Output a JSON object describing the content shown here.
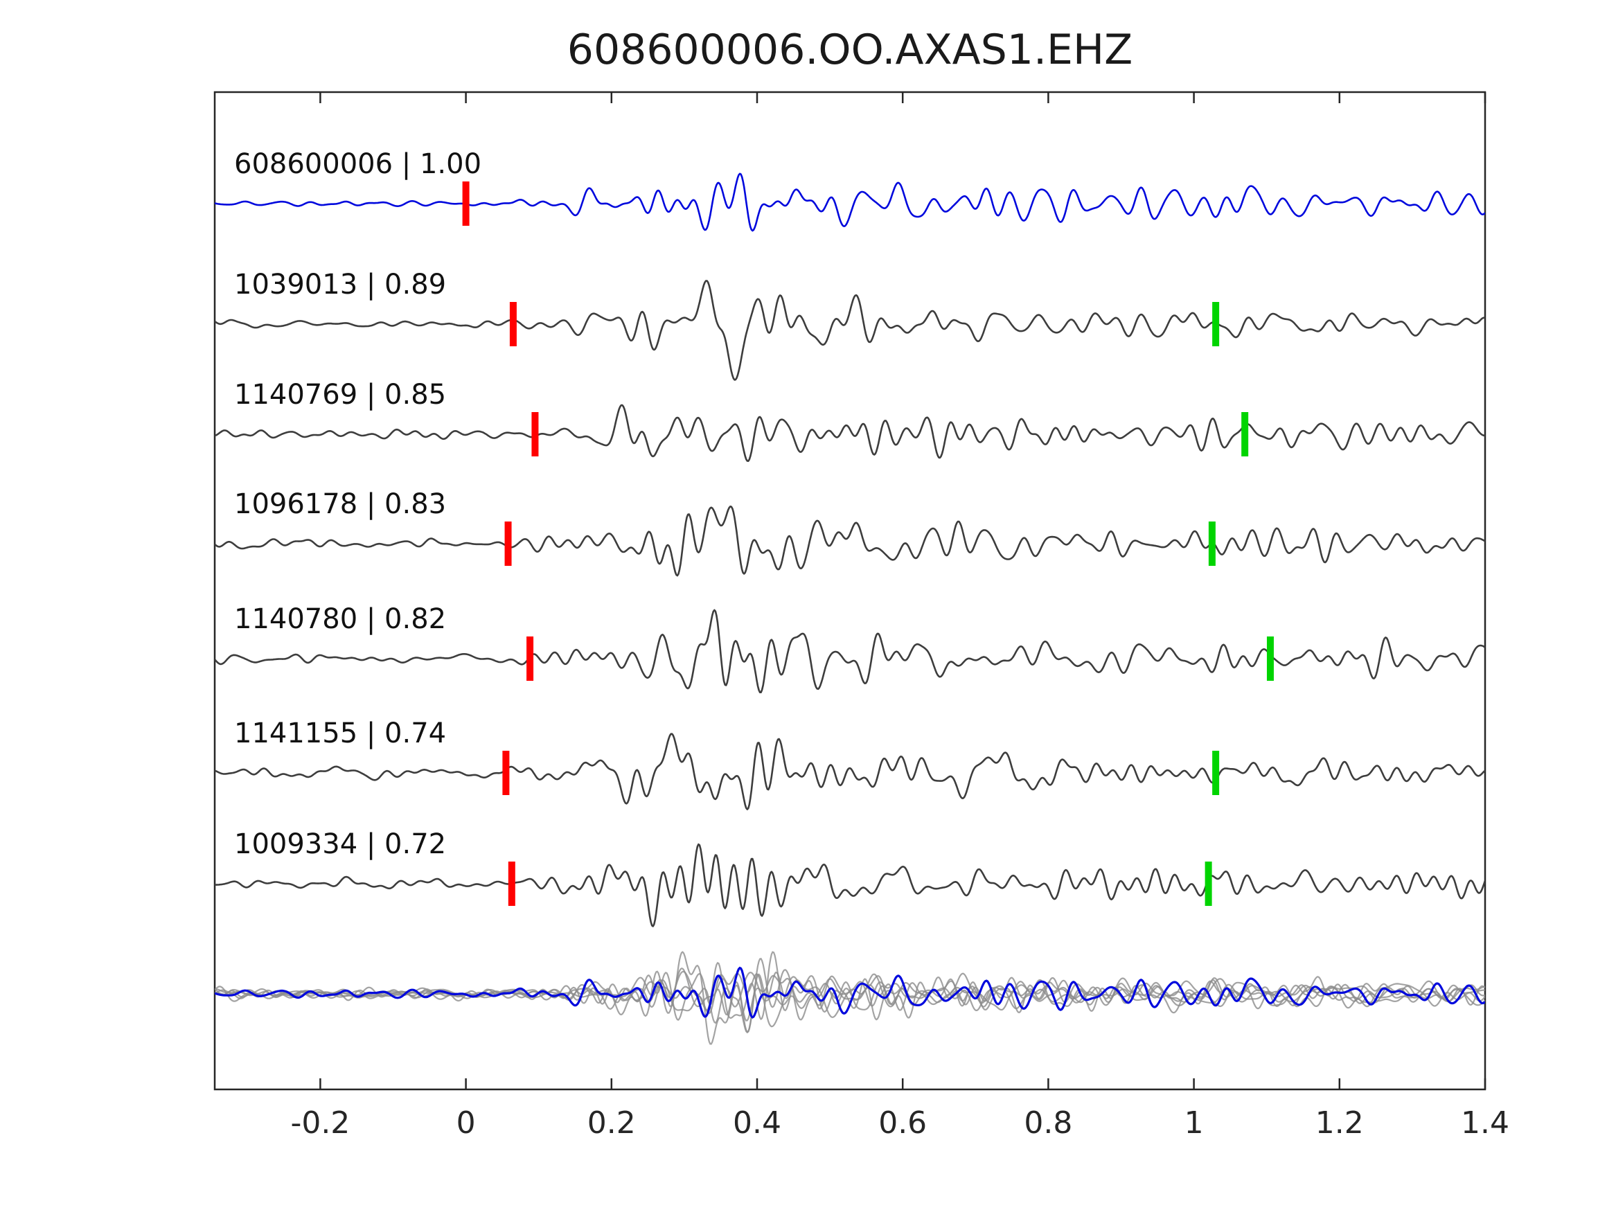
{
  "title": "608600006.OO.AXAS1.EHZ",
  "chart_data": {
    "type": "line",
    "title": "608600006.OO.AXAS1.EHZ",
    "xlabel": "",
    "ylabel": "",
    "xlim": [
      -0.345,
      1.4
    ],
    "x_ticks": [
      -0.2,
      0,
      0.2,
      0.4,
      0.6,
      0.8,
      1,
      1.2,
      1.4
    ],
    "x_tick_labels": [
      "-0.2",
      "0",
      "0.2",
      "0.4",
      "0.6",
      "0.8",
      "1",
      "1.2",
      "1.4"
    ],
    "grid": false,
    "legend": false,
    "description": "Template-matching seismogram comparison: detected waveforms ordered by cross-correlation with template 608600006; red bars mark pick times near 0, green bars mark secondary picks near 1.0; bottom row overlays all aligned traces (gray) with the template highlighted (blue).",
    "traces": [
      {
        "id": "608600006",
        "label": "608600006 | 1.00",
        "correlation": 1.0,
        "color": "#0008dd",
        "red_pick": 0.0,
        "green_pick": null
      },
      {
        "id": "1039013",
        "label": "1039013 | 0.89",
        "correlation": 0.89,
        "color": "#3d3d3d",
        "red_pick": 0.065,
        "green_pick": 1.03
      },
      {
        "id": "1140769",
        "label": "1140769 | 0.85",
        "correlation": 0.85,
        "color": "#3d3d3d",
        "red_pick": 0.095,
        "green_pick": 1.07
      },
      {
        "id": "1096178",
        "label": "1096178 | 0.83",
        "correlation": 0.83,
        "color": "#3d3d3d",
        "red_pick": 0.058,
        "green_pick": 1.025
      },
      {
        "id": "1140780",
        "label": "1140780 | 0.82",
        "correlation": 0.82,
        "color": "#3d3d3d",
        "red_pick": 0.088,
        "green_pick": 1.105
      },
      {
        "id": "1141155",
        "label": "1141155 | 0.74",
        "correlation": 0.74,
        "color": "#3d3d3d",
        "red_pick": 0.055,
        "green_pick": 1.03
      },
      {
        "id": "1009334",
        "label": "1009334 | 0.72",
        "correlation": 0.72,
        "color": "#3d3d3d",
        "red_pick": 0.063,
        "green_pick": 1.02
      }
    ],
    "overlay": {
      "n_gray_traces": 6,
      "gray_color": "#8c8c8c",
      "highlight_color": "#0008dd"
    },
    "marker_colors": {
      "red_pick": "#ff0000",
      "green_pick": "#00d400"
    },
    "frame_color": "#262626"
  }
}
